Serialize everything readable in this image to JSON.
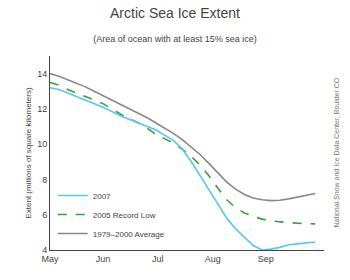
{
  "chart_data": {
    "type": "line",
    "title": "Arctic Sea Ice Extent",
    "subtitle": "(Area of ocean with at least 15% sea ice)",
    "y_label": "Extent (millions of square kilometers)",
    "annotations": [
      "National Snow and Ice Data Center, Boulder CO"
    ],
    "x": [
      0,
      5,
      10,
      15,
      20,
      25,
      30,
      35,
      40,
      45,
      50,
      55,
      60,
      65,
      70,
      75,
      80,
      85,
      90,
      95,
      100,
      105,
      110,
      115,
      120,
      125,
      130,
      135,
      140,
      145,
      150
    ],
    "series": [
      {
        "name": "2007",
        "color": "#55c8f0",
        "line_style": "solid",
        "values": [
          13.2,
          13.1,
          12.9,
          12.7,
          12.5,
          12.3,
          12.1,
          11.85,
          11.6,
          11.4,
          11.2,
          11.0,
          10.8,
          10.5,
          10.2,
          9.7,
          9.0,
          8.2,
          7.4,
          6.6,
          5.8,
          5.2,
          4.7,
          4.25,
          4.0,
          4.05,
          4.15,
          4.3,
          4.35,
          4.4,
          4.45
        ]
      },
      {
        "name": "2005 Record Low",
        "color": "#3a9e3a",
        "line_style": "dashed",
        "values": [
          13.5,
          13.35,
          13.1,
          12.9,
          12.7,
          12.5,
          12.3,
          12.0,
          11.7,
          11.45,
          11.2,
          10.9,
          10.55,
          10.3,
          10.05,
          9.7,
          9.3,
          8.8,
          8.2,
          7.5,
          6.85,
          6.4,
          6.1,
          5.9,
          5.75,
          5.65,
          5.58,
          5.55,
          5.52,
          5.5,
          5.48
        ]
      },
      {
        "name": "1979–2000 Average",
        "color": "#888888",
        "line_style": "solid",
        "values": [
          14.0,
          13.85,
          13.65,
          13.45,
          13.25,
          13.0,
          12.75,
          12.5,
          12.25,
          12.0,
          11.75,
          11.5,
          11.2,
          10.9,
          10.6,
          10.25,
          9.85,
          9.4,
          8.9,
          8.35,
          7.85,
          7.45,
          7.15,
          6.95,
          6.85,
          6.8,
          6.82,
          6.9,
          7.0,
          7.1,
          7.2
        ]
      }
    ],
    "xlim": [
      0,
      155
    ],
    "xticks": [
      {
        "value": 0,
        "label": "May"
      },
      {
        "value": 30,
        "label": "Jun"
      },
      {
        "value": 61,
        "label": "Jul"
      },
      {
        "value": 92,
        "label": "Aug"
      },
      {
        "value": 122,
        "label": "Sep"
      }
    ],
    "ylim": [
      4,
      15
    ],
    "yticks": [
      4,
      6,
      8,
      10,
      12,
      14
    ],
    "grid": false,
    "legend": "lower left"
  }
}
